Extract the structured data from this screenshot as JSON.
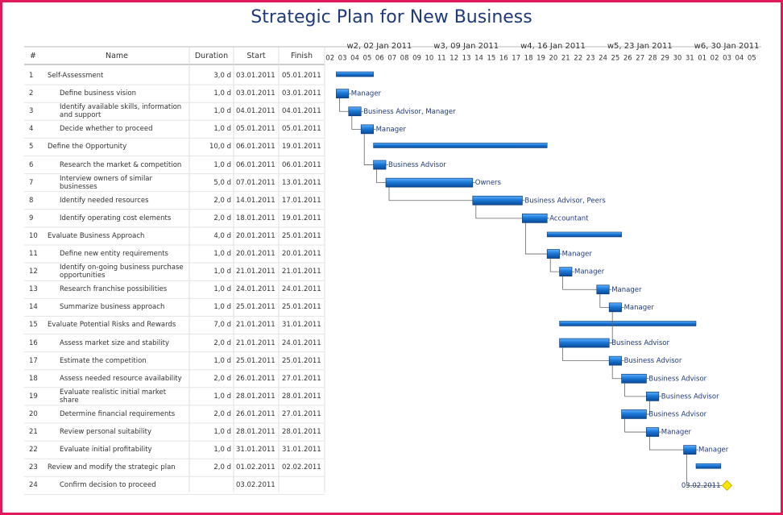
{
  "title": "Strategic Plan for New Business",
  "table": {
    "headers": [
      "#",
      "Name",
      "Duration",
      "Start",
      "Finish"
    ],
    "rows": [
      {
        "id": "1",
        "name": "Self-Assessment",
        "duration": "3,0 d",
        "start": "03.01.2011",
        "finish": "05.01.2011",
        "summary": true
      },
      {
        "id": "2",
        "name": "Define business vision",
        "duration": "1,0 d",
        "start": "03.01.2011",
        "finish": "03.01.2011",
        "resource": "Manager"
      },
      {
        "id": "3",
        "name": "Identify available skills, information and support",
        "duration": "1,0 d",
        "start": "04.01.2011",
        "finish": "04.01.2011",
        "resource": "Business Advisor, Manager"
      },
      {
        "id": "4",
        "name": "Decide whether to proceed",
        "duration": "1,0 d",
        "start": "05.01.2011",
        "finish": "05.01.2011",
        "resource": "Manager"
      },
      {
        "id": "5",
        "name": "Define the Opportunity",
        "duration": "10,0 d",
        "start": "06.01.2011",
        "finish": "19.01.2011",
        "summary": true
      },
      {
        "id": "6",
        "name": "Research the market & competition",
        "duration": "1,0 d",
        "start": "06.01.2011",
        "finish": "06.01.2011",
        "resource": "Business Advisor"
      },
      {
        "id": "7",
        "name": "Interview owners of similar businesses",
        "duration": "5,0 d",
        "start": "07.01.2011",
        "finish": "13.01.2011",
        "resource": "Owners"
      },
      {
        "id": "8",
        "name": "Identify needed resources",
        "duration": "2,0 d",
        "start": "14.01.2011",
        "finish": "17.01.2011",
        "resource": "Business Advisor, Peers"
      },
      {
        "id": "9",
        "name": "Identify operating cost elements",
        "duration": "2,0 d",
        "start": "18.01.2011",
        "finish": "19.01.2011",
        "resource": "Accountant"
      },
      {
        "id": "10",
        "name": "Evaluate Business Approach",
        "duration": "4,0 d",
        "start": "20.01.2011",
        "finish": "25.01.2011",
        "summary": true
      },
      {
        "id": "11",
        "name": "Define new entity requirements",
        "duration": "1,0 d",
        "start": "20.01.2011",
        "finish": "20.01.2011",
        "resource": "Manager"
      },
      {
        "id": "12",
        "name": "Identify on-going business purchase opportunities",
        "duration": "1,0 d",
        "start": "21.01.2011",
        "finish": "21.01.2011",
        "resource": "Manager"
      },
      {
        "id": "13",
        "name": "Research franchise possibilities",
        "duration": "1,0 d",
        "start": "24.01.2011",
        "finish": "24.01.2011",
        "resource": "Manager"
      },
      {
        "id": "14",
        "name": "Summarize business approach",
        "duration": "1,0 d",
        "start": "25.01.2011",
        "finish": "25.01.2011",
        "resource": "Manager"
      },
      {
        "id": "15",
        "name": "Evaluate Potential Risks and Rewards",
        "duration": "7,0 d",
        "start": "21.01.2011",
        "finish": "31.01.2011",
        "summary": true
      },
      {
        "id": "16",
        "name": "Assess market size and stability",
        "duration": "2,0 d",
        "start": "21.01.2011",
        "finish": "24.01.2011",
        "resource": "Business Advisor"
      },
      {
        "id": "17",
        "name": "Estimate the competition",
        "duration": "1,0 d",
        "start": "25.01.2011",
        "finish": "25.01.2011",
        "resource": "Business Advisor"
      },
      {
        "id": "18",
        "name": "Assess needed resource availability",
        "duration": "2,0 d",
        "start": "26.01.2011",
        "finish": "27.01.2011",
        "resource": "Business Advisor"
      },
      {
        "id": "19",
        "name": "Evaluate realistic initial market share",
        "duration": "1,0 d",
        "start": "28.01.2011",
        "finish": "28.01.2011",
        "resource": "Business Advisor"
      },
      {
        "id": "20",
        "name": "Determine financial requirements",
        "duration": "2,0 d",
        "start": "26.01.2011",
        "finish": "27.01.2011",
        "resource": "Business Advisor"
      },
      {
        "id": "21",
        "name": "Review personal suitability",
        "duration": "1,0 d",
        "start": "28.01.2011",
        "finish": "28.01.2011",
        "resource": "Manager"
      },
      {
        "id": "22",
        "name": "Evaluate initial profitability",
        "duration": "1,0 d",
        "start": "31.01.2011",
        "finish": "31.01.2011",
        "resource": "Manager"
      },
      {
        "id": "23",
        "name": "Review and modify the strategic plan",
        "duration": "2,0 d",
        "start": "01.02.2011",
        "finish": "02.02.2011",
        "summary": true
      },
      {
        "id": "24",
        "name": "Confirm decision to proceed",
        "start": "03.02.2011",
        "milestone": true,
        "milestone_label": "03.02.2011"
      }
    ]
  },
  "timeline": {
    "weeks": [
      "w2, 02 Jan 2011",
      "w3, 09 Jan 2011",
      "w4, 16 Jan 2011",
      "w5, 23 Jan 2011",
      "w6, 30 Jan 2011"
    ],
    "days": [
      "02",
      "03",
      "04",
      "05",
      "06",
      "07",
      "08",
      "09",
      "10",
      "11",
      "12",
      "13",
      "14",
      "15",
      "16",
      "17",
      "18",
      "19",
      "20",
      "21",
      "22",
      "23",
      "24",
      "25",
      "26",
      "27",
      "28",
      "29",
      "30",
      "31",
      "01",
      "02",
      "03",
      "04",
      "05"
    ]
  }
}
